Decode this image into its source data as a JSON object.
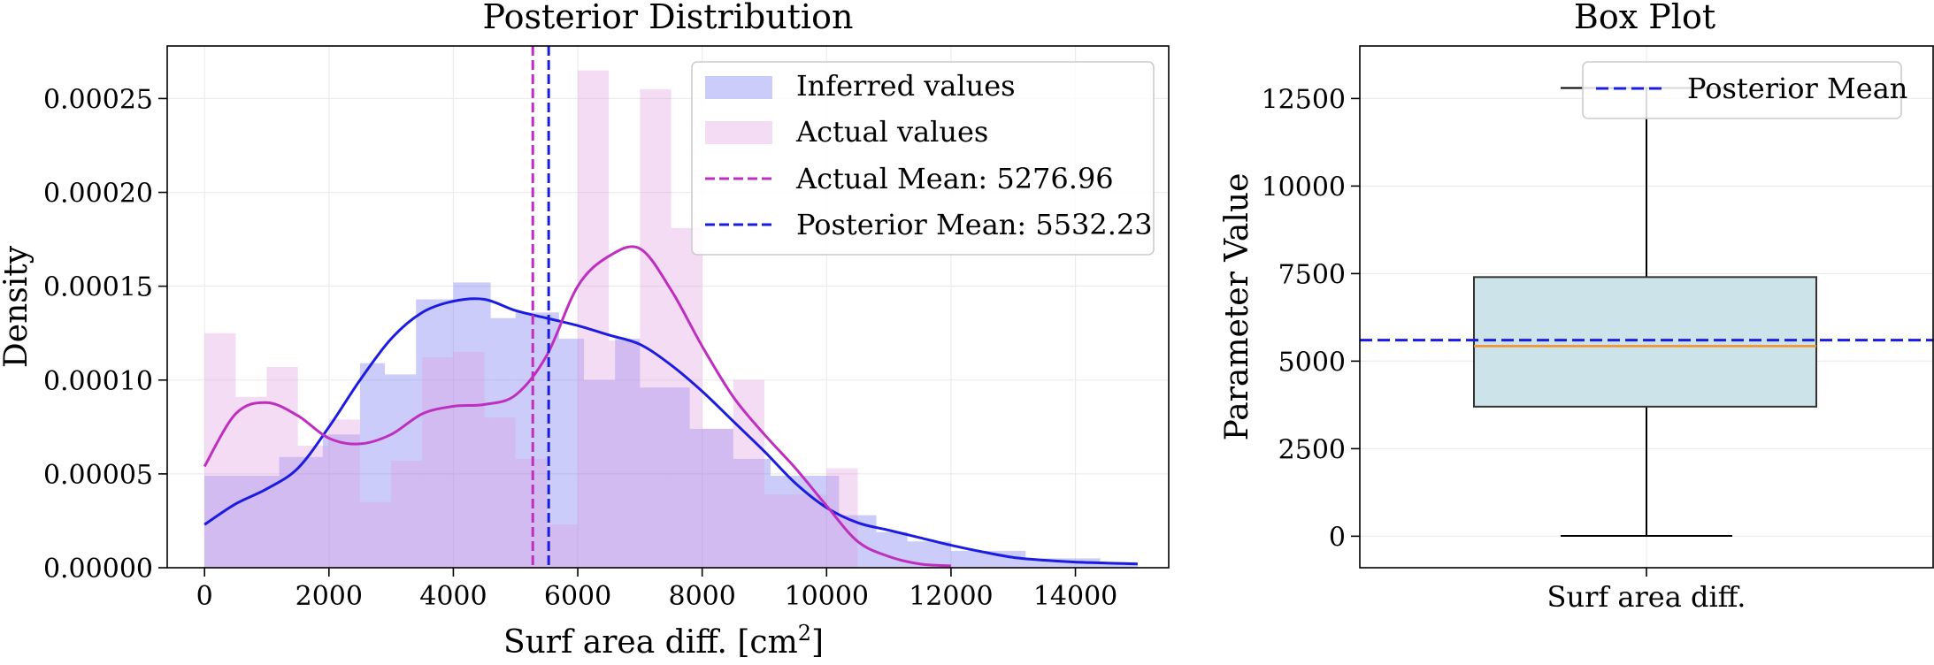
{
  "chart_data": [
    {
      "type": "histogram",
      "title": "Posterior Distribution",
      "xlabel": "Surf area diff. [cm²]",
      "xlabel_base": "Surf area diff. [cm",
      "xlabel_sup": "2",
      "xlabel_end": "]",
      "ylabel": "Density",
      "xlim": [
        -600,
        15500
      ],
      "ylim": [
        0,
        0.000278
      ],
      "x_ticks": [
        0,
        2000,
        4000,
        6000,
        8000,
        10000,
        12000,
        14000
      ],
      "y_ticks": [
        0,
        5e-05,
        0.0001,
        0.00015,
        0.0002,
        0.00025
      ],
      "y_tick_labels": [
        "0.00000",
        "0.00005",
        "0.00010",
        "0.00015",
        "0.00020",
        "0.00025"
      ],
      "grid": true,
      "legend_position": "top-right",
      "series": [
        {
          "name": "Inferred values",
          "kind": "hist",
          "color": "#6a6cf0",
          "opacity": 0.35,
          "bins": [
            0,
            1200,
            1900,
            2500,
            2900,
            3400,
            4000,
            4600,
            5000,
            5700,
            6100,
            6600,
            7000,
            7800,
            8500,
            9100,
            10200,
            10800,
            11300,
            12000,
            13200,
            14400,
            15000
          ],
          "values": [
            4.9e-05,
            5.9e-05,
            7.1e-05,
            0.000109,
            0.000103,
            0.000143,
            0.000152,
            0.000133,
            0.000136,
            0.000122,
            0.0001,
            0.000122,
            9.6e-05,
            7.4e-05,
            5.8e-05,
            4.9e-05,
            2.8e-05,
            1.9e-05,
            1.4e-05,
            9e-06,
            5e-06,
            3e-06
          ]
        },
        {
          "name": "Actual values",
          "kind": "hist",
          "color": "#dc9be0",
          "opacity": 0.35,
          "bins": [
            0,
            500,
            1000,
            1500,
            2000,
            2500,
            3000,
            3500,
            4000,
            4500,
            5000,
            5500,
            6000,
            6500,
            7000,
            7500,
            8000,
            8500,
            9000,
            9500,
            10000,
            10500,
            11000,
            11500,
            12000
          ],
          "values": [
            0.000125,
            9.1e-05,
            0.000107,
            6.5e-05,
            7.9e-05,
            3.5e-05,
            5.7e-05,
            0.000112,
            0.000115,
            8e-05,
            5.8e-05,
            2.3e-05,
            0.000265,
            0.000121,
            0.000255,
            0.000181,
            7.4e-05,
            0.0001,
            3.9e-05,
            3.9e-05,
            5.3e-05,
            0.0,
            0.0,
            0.0
          ]
        },
        {
          "name": "Inferred KDE",
          "kind": "line",
          "color": "#1c1ce0",
          "x": [
            0,
            500,
            1000,
            1500,
            2000,
            2500,
            3000,
            3500,
            4000,
            4500,
            5000,
            5500,
            6000,
            6500,
            7000,
            7500,
            8000,
            8500,
            9000,
            9500,
            10000,
            10500,
            11000,
            11500,
            12000,
            12500,
            13000,
            13500,
            14000,
            14500,
            15000
          ],
          "y": [
            2.3e-05,
            3.4e-05,
            4.2e-05,
            5.3e-05,
            7.5e-05,
            0.0001,
            0.000122,
            0.000136,
            0.000142,
            0.000143,
            0.000137,
            0.000133,
            0.000129,
            0.000124,
            0.000119,
            0.000108,
            9.4e-05,
            7.8e-05,
            6.2e-05,
            4.5e-05,
            3.2e-05,
            2.4e-05,
            2e-05,
            1.6e-05,
            1.2e-05,
            8.5e-06,
            5.5e-06,
            4e-06,
            3e-06,
            2.5e-06,
            2e-06
          ]
        },
        {
          "name": "Actual KDE",
          "kind": "line",
          "color": "#bf2fbf",
          "x": [
            0,
            500,
            1000,
            1500,
            2000,
            2500,
            3000,
            3500,
            4000,
            4500,
            5000,
            5500,
            6000,
            6500,
            7000,
            7500,
            8000,
            8500,
            9000,
            9500,
            10000,
            10500,
            11000,
            11500,
            12000
          ],
          "y": [
            5.4e-05,
            8.2e-05,
            8.8e-05,
            8.1e-05,
            6.9e-05,
            6.6e-05,
            7.1e-05,
            8.2e-05,
            8.6e-05,
            8.7e-05,
            9.2e-05,
            0.000113,
            0.00015,
            0.000166,
            0.00017,
            0.000148,
            0.000118,
            9.1e-05,
            7.1e-05,
            5.3e-05,
            3.3e-05,
            1.4e-05,
            6e-06,
            2e-06,
            1e-06
          ]
        },
        {
          "name": "Actual Mean: 5276.96",
          "kind": "vline",
          "value": 5276.96,
          "color": "#bf2fbf",
          "dash": true
        },
        {
          "name": "Posterior Mean: 5532.23",
          "kind": "vline",
          "value": 5532.23,
          "color": "#1c1ce0",
          "dash": true
        }
      ],
      "legend": [
        {
          "label": "Inferred values",
          "kind": "patch",
          "color": "#6a6cf0"
        },
        {
          "label": "Actual values",
          "kind": "patch",
          "color": "#dc9be0"
        },
        {
          "label": "Actual Mean: 5276.96",
          "kind": "dash",
          "color": "#bf2fbf"
        },
        {
          "label": "Posterior Mean: 5532.23",
          "kind": "dash",
          "color": "#1c1ce0"
        }
      ]
    },
    {
      "type": "box",
      "title": "Box Plot",
      "xlabel": "",
      "ylabel": "Parameter Value",
      "category": "Surf area diff.",
      "ylim": [
        -900,
        14000
      ],
      "y_ticks": [
        0,
        2500,
        5000,
        7500,
        10000,
        12500
      ],
      "y_tick_labels": [
        "0",
        "2500",
        "5000",
        "7500",
        "10000",
        "12500"
      ],
      "grid": true,
      "box": {
        "whisker_low": 10,
        "q1": 3700,
        "median": 5430,
        "q3": 7400,
        "whisker_high": 12800,
        "fill": "#cce3ea",
        "median_color": "#f28e2b"
      },
      "posterior_mean": {
        "label": "Posterior Mean",
        "value": 5600,
        "color": "#1c1ce0"
      },
      "legend_position": "top-right"
    }
  ]
}
